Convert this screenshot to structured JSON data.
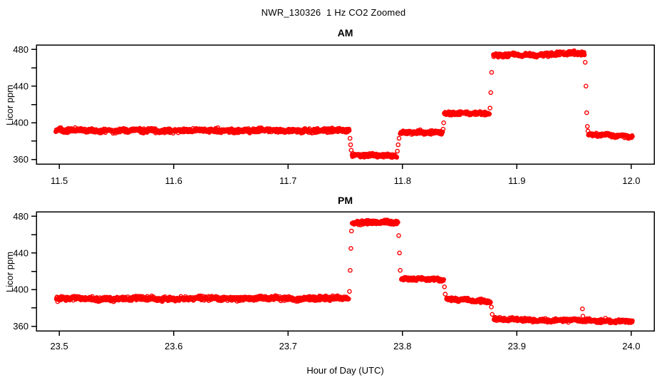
{
  "figure": {
    "title": "NWR_130326  1 Hz CO2 Zoomed"
  },
  "chart_data": {
    "type": "scatter",
    "title": "NWR_130326  1 Hz CO2 Zoomed",
    "xlabel": "Hour of Day (UTC)",
    "ylabel": "Licor ppm",
    "marker": "open-circle",
    "point_color": "#FF0000",
    "axis_color": "#000000",
    "background": "#FFFFFF",
    "sample_rate_hz": 1,
    "grid": false,
    "legend": "none",
    "panels": [
      {
        "title": "AM",
        "xlim": [
          11.48,
          12.02
        ],
        "ylim": [
          355,
          485
        ],
        "xticks": [
          11.5,
          11.6,
          11.7,
          11.8,
          11.9,
          12.0
        ],
        "yticks": [
          360,
          380,
          400,
          420,
          440,
          460,
          480
        ],
        "ytick_labels": [
          360,
          400,
          440,
          480
        ],
        "segments": [
          {
            "t0": 11.497,
            "t1": 11.7535,
            "v0": 391.5,
            "v1": 391.5,
            "noise": 1.8
          },
          {
            "t0": 11.756,
            "t1": 11.795,
            "v0": 364.5,
            "v1": 364.0,
            "noise": 1.5
          },
          {
            "t0": 11.798,
            "t1": 11.835,
            "v0": 389.0,
            "v1": 389.5,
            "noise": 1.5
          },
          {
            "t0": 11.8365,
            "t1": 11.876,
            "v0": 409.5,
            "v1": 411.0,
            "noise": 1.5
          },
          {
            "t0": 11.8795,
            "t1": 11.959,
            "v0": 473.0,
            "v1": 476.0,
            "noise": 1.7
          },
          {
            "t0": 11.9625,
            "t1": 12.001,
            "v0": 387.0,
            "v1": 385.0,
            "noise": 1.4
          }
        ],
        "transitions": [
          {
            "t": 11.7542,
            "v": 383
          },
          {
            "t": 11.7547,
            "v": 376
          },
          {
            "t": 11.7552,
            "v": 370
          },
          {
            "t": 11.7955,
            "v": 369
          },
          {
            "t": 11.7962,
            "v": 376
          },
          {
            "t": 11.797,
            "v": 383
          },
          {
            "t": 11.8355,
            "v": 393
          },
          {
            "t": 11.836,
            "v": 400
          },
          {
            "t": 11.8765,
            "v": 416
          },
          {
            "t": 11.8772,
            "v": 433
          },
          {
            "t": 11.8779,
            "v": 455
          },
          {
            "t": 11.9597,
            "v": 466
          },
          {
            "t": 11.9604,
            "v": 440
          },
          {
            "t": 11.961,
            "v": 411
          },
          {
            "t": 11.9616,
            "v": 396
          },
          {
            "t": 11.9621,
            "v": 391
          }
        ]
      },
      {
        "title": "PM",
        "xlim": [
          23.48,
          24.02
        ],
        "ylim": [
          355,
          485
        ],
        "xticks": [
          23.5,
          23.6,
          23.7,
          23.8,
          23.9,
          24.0
        ],
        "yticks": [
          360,
          380,
          400,
          420,
          440,
          460,
          480
        ],
        "ytick_labels": [
          360,
          400,
          440,
          480
        ],
        "segments": [
          {
            "t0": 23.4975,
            "t1": 23.753,
            "v0": 390.0,
            "v1": 390.5,
            "noise": 1.8
          },
          {
            "t0": 23.756,
            "t1": 23.796,
            "v0": 472.5,
            "v1": 474.0,
            "noise": 1.7
          },
          {
            "t0": 23.799,
            "t1": 23.836,
            "v0": 411.5,
            "v1": 411.0,
            "noise": 1.5
          },
          {
            "t0": 23.8385,
            "t1": 23.877,
            "v0": 389.5,
            "v1": 387.0,
            "noise": 1.5
          },
          {
            "t0": 23.88,
            "t1": 24.001,
            "v0": 367.5,
            "v1": 365.5,
            "noise": 1.4
          }
        ],
        "transitions": [
          {
            "t": 23.7537,
            "v": 398
          },
          {
            "t": 23.7543,
            "v": 421
          },
          {
            "t": 23.7549,
            "v": 445
          },
          {
            "t": 23.7554,
            "v": 464
          },
          {
            "t": 23.7967,
            "v": 459
          },
          {
            "t": 23.7974,
            "v": 440
          },
          {
            "t": 23.798,
            "v": 421
          },
          {
            "t": 23.8367,
            "v": 403
          },
          {
            "t": 23.8374,
            "v": 395
          },
          {
            "t": 23.8777,
            "v": 381
          },
          {
            "t": 23.8784,
            "v": 373
          },
          {
            "t": 23.9573,
            "v": 379
          },
          {
            "t": 23.9577,
            "v": 371
          }
        ]
      }
    ]
  }
}
